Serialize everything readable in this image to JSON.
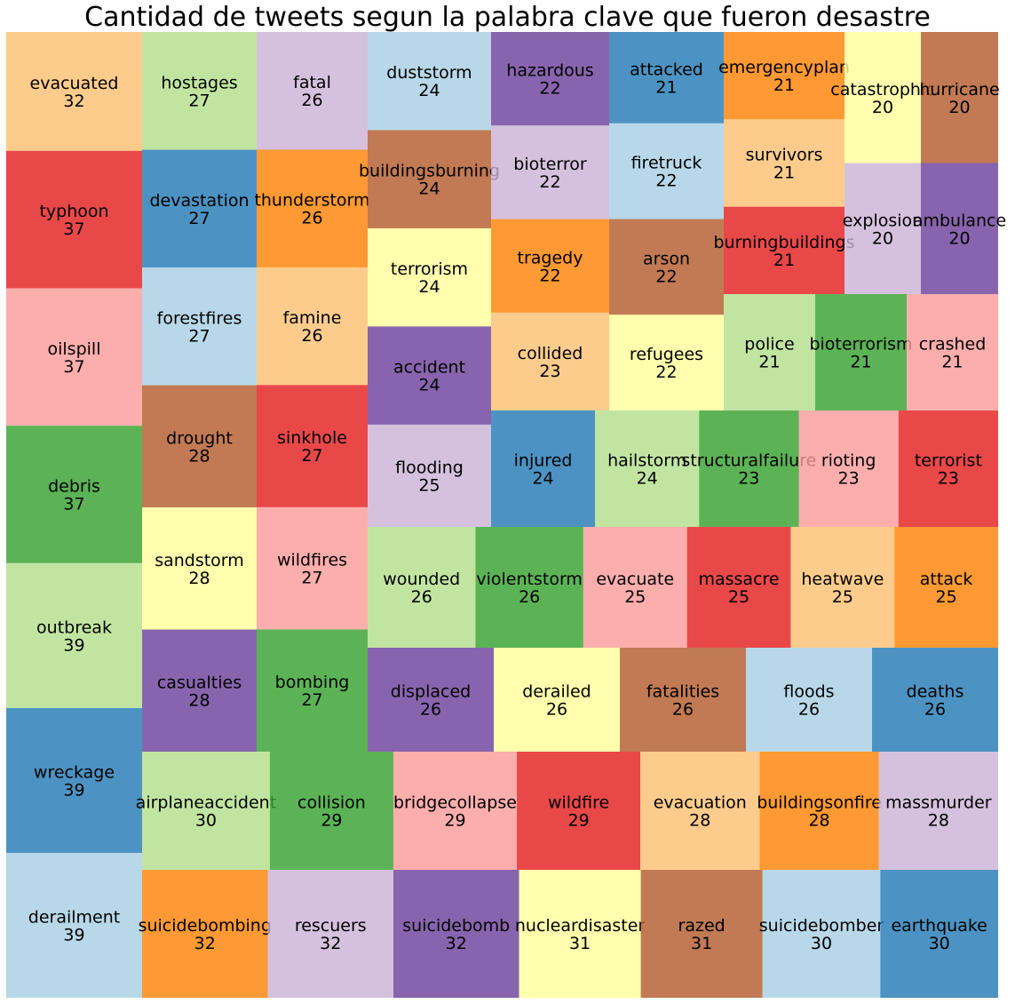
{
  "chart_data": {
    "type": "treemap",
    "title": "Cantidad de tweets segun la palabra clave que fueron desastre",
    "palette": [
      "#A6CEE3",
      "#1F78B4",
      "#B2DF8A",
      "#33A02C",
      "#FB9A99",
      "#E31A1C",
      "#FDBF6F",
      "#FF7F00",
      "#CAB2D6",
      "#6A3D9A",
      "#FFFF99",
      "#B15928"
    ],
    "columns": [
      [
        [
          "evacuated",
          32,
          6
        ],
        [
          "typhoon",
          37,
          5
        ],
        [
          "oilspill",
          37,
          4
        ],
        [
          "debris",
          37,
          3
        ],
        [
          "outbreak",
          39,
          2
        ],
        [
          "wreckage",
          39,
          1
        ],
        [
          "derailment",
          39,
          0
        ]
      ],
      [
        [
          "hostages",
          27,
          2
        ],
        [
          "devastation",
          27,
          1
        ],
        [
          "forestfires",
          27,
          0
        ],
        [
          "drought",
          28,
          11
        ],
        [
          "sandstorm",
          28,
          10
        ],
        [
          "casualties",
          28,
          9
        ]
      ],
      [
        [
          "fatal",
          26,
          8
        ],
        [
          "thunderstorm",
          26,
          7
        ],
        [
          "famine",
          26,
          6
        ],
        [
          "sinkhole",
          27,
          5
        ],
        [
          "wildfires",
          27,
          4
        ],
        [
          "bombing",
          27,
          3
        ]
      ],
      [
        [
          "duststorm",
          24,
          0
        ],
        [
          "buildingsburning",
          24,
          11
        ],
        [
          "terrorism",
          24,
          10
        ],
        [
          "accident",
          24,
          9
        ],
        [
          "flooding",
          25,
          8
        ]
      ],
      [
        [
          "hazardous",
          22,
          9
        ],
        [
          "bioterror",
          22,
          8
        ],
        [
          "tragedy",
          22,
          7
        ],
        [
          "collided",
          23,
          6
        ]
      ],
      [
        [
          "attacked",
          21,
          1
        ],
        [
          "firetruck",
          22,
          0
        ],
        [
          "arson",
          22,
          11
        ],
        [
          "refugees",
          22,
          10
        ]
      ],
      [
        [
          "emergencyplan",
          21,
          7
        ],
        [
          "survivors",
          21,
          6
        ],
        [
          "burningbuildings",
          21,
          5
        ]
      ],
      [
        [
          "catastrophic",
          20,
          10
        ],
        [
          "explosion",
          20,
          8
        ]
      ],
      [
        [
          "hurricane",
          20,
          11
        ],
        [
          "ambulance",
          20,
          9
        ]
      ],
      [
        [
          "police",
          21,
          2
        ],
        [
          "bioterrorism",
          21,
          3
        ],
        [
          "crashed",
          21,
          4
        ]
      ],
      [
        [
          "injured",
          24,
          1
        ],
        [
          "hailstorm",
          24,
          2
        ],
        [
          "structuralfailure",
          23,
          3
        ],
        [
          "rioting",
          23,
          4
        ],
        [
          "terrorist",
          23,
          5
        ]
      ],
      [
        [
          "wounded",
          26,
          2
        ],
        [
          "violentstorm",
          26,
          3
        ],
        [
          "evacuate",
          25,
          4
        ],
        [
          "massacre",
          25,
          5
        ],
        [
          "heatwave",
          25,
          6
        ],
        [
          "attack",
          25,
          7
        ]
      ],
      [
        [
          "displaced",
          26,
          9
        ],
        [
          "derailed",
          26,
          10
        ],
        [
          "fatalities",
          26,
          11
        ],
        [
          "floods",
          26,
          0
        ],
        [
          "deaths",
          26,
          1
        ]
      ],
      [
        [
          "airplaneaccident",
          30,
          2
        ],
        [
          "collision",
          29,
          3
        ],
        [
          "bridgecollapse",
          29,
          4
        ],
        [
          "wildfire",
          29,
          5
        ],
        [
          "evacuation",
          28,
          6
        ],
        [
          "buildingsonfire",
          28,
          7
        ],
        [
          "massmurder",
          28,
          8
        ]
      ],
      [
        [
          "suicidebombing",
          32,
          7
        ],
        [
          "rescuers",
          32,
          8
        ],
        [
          "suicidebomb",
          32,
          9
        ],
        [
          "nucleardisaster",
          31,
          10
        ],
        [
          "razed",
          31,
          11
        ],
        [
          "suicidebomber",
          30,
          0
        ],
        [
          "earthquake",
          30,
          1
        ]
      ]
    ]
  }
}
